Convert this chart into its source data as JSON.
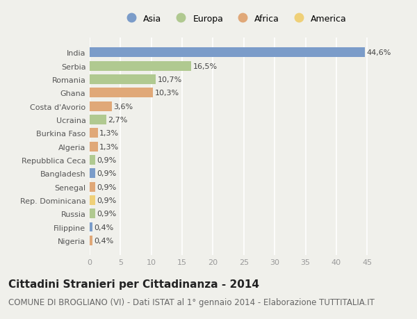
{
  "countries": [
    "India",
    "Serbia",
    "Romania",
    "Ghana",
    "Costa d'Avorio",
    "Ucraina",
    "Burkina Faso",
    "Algeria",
    "Repubblica Ceca",
    "Bangladesh",
    "Senegal",
    "Rep. Dominicana",
    "Russia",
    "Filippine",
    "Nigeria"
  ],
  "values": [
    44.6,
    16.5,
    10.7,
    10.3,
    3.6,
    2.7,
    1.3,
    1.3,
    0.9,
    0.9,
    0.9,
    0.9,
    0.9,
    0.4,
    0.4
  ],
  "labels": [
    "44,6%",
    "16,5%",
    "10,7%",
    "10,3%",
    "3,6%",
    "2,7%",
    "1,3%",
    "1,3%",
    "0,9%",
    "0,9%",
    "0,9%",
    "0,9%",
    "0,9%",
    "0,4%",
    "0,4%"
  ],
  "continents": [
    "Asia",
    "Europa",
    "Europa",
    "Africa",
    "Africa",
    "Europa",
    "Africa",
    "Africa",
    "Europa",
    "Asia",
    "Africa",
    "America",
    "Europa",
    "Asia",
    "Africa"
  ],
  "colors": {
    "Asia": "#7b9cc9",
    "Europa": "#b0c990",
    "Africa": "#e0a878",
    "America": "#efd078"
  },
  "legend_order": [
    "Asia",
    "Europa",
    "Africa",
    "America"
  ],
  "title": "Cittadini Stranieri per Cittadinanza - 2014",
  "subtitle": "COMUNE DI BROGLIANO (VI) - Dati ISTAT al 1° gennaio 2014 - Elaborazione TUTTITALIA.IT",
  "xlim": [
    0,
    47
  ],
  "xticks": [
    0,
    5,
    10,
    15,
    20,
    25,
    30,
    35,
    40,
    45
  ],
  "background_color": "#f0f0eb",
  "grid_color": "#ffffff",
  "bar_height": 0.72,
  "title_fontsize": 11,
  "subtitle_fontsize": 8.5,
  "label_fontsize": 8,
  "ytick_fontsize": 8,
  "xtick_fontsize": 8
}
